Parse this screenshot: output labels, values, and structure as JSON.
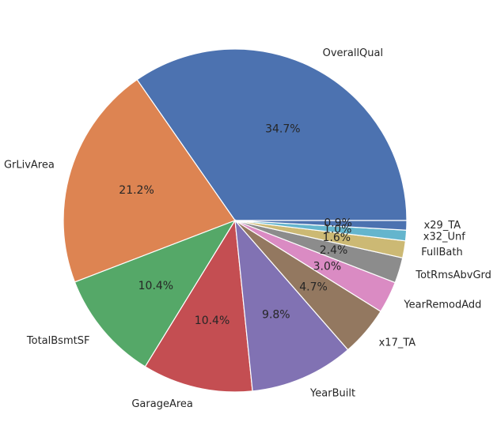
{
  "chart_data": {
    "type": "pie",
    "title": "",
    "slices": [
      {
        "label": "OverallQual",
        "value": 34.7,
        "pct_label": "34.7%",
        "color": "#4c72b0"
      },
      {
        "label": "GrLivArea",
        "value": 21.2,
        "pct_label": "21.2%",
        "color": "#dd8452"
      },
      {
        "label": "TotalBsmtSF",
        "value": 10.4,
        "pct_label": "10.4%",
        "color": "#55a868"
      },
      {
        "label": "GarageArea",
        "value": 10.4,
        "pct_label": "10.4%",
        "color": "#c44e52"
      },
      {
        "label": "YearBuilt",
        "value": 9.8,
        "pct_label": "9.8%",
        "color": "#8172b3"
      },
      {
        "label": "x17_TA",
        "value": 4.7,
        "pct_label": "4.7%",
        "color": "#937860"
      },
      {
        "label": "YearRemodAdd",
        "value": 3.0,
        "pct_label": "3.0%",
        "color": "#da8bc3"
      },
      {
        "label": "TotRmsAbvGrd",
        "value": 2.4,
        "pct_label": "2.4%",
        "color": "#8c8c8c"
      },
      {
        "label": "FullBath",
        "value": 1.6,
        "pct_label": "1.6%",
        "color": "#ccb974"
      },
      {
        "label": "x32_Unf",
        "value": 1.0,
        "pct_label": "1.0%",
        "color": "#64b5cd"
      },
      {
        "label": "x29_TA",
        "value": 0.9,
        "pct_label": "0.9%",
        "color": "#4c72b0"
      }
    ],
    "start_angle_deg": 0,
    "direction": "counterclockwise"
  }
}
